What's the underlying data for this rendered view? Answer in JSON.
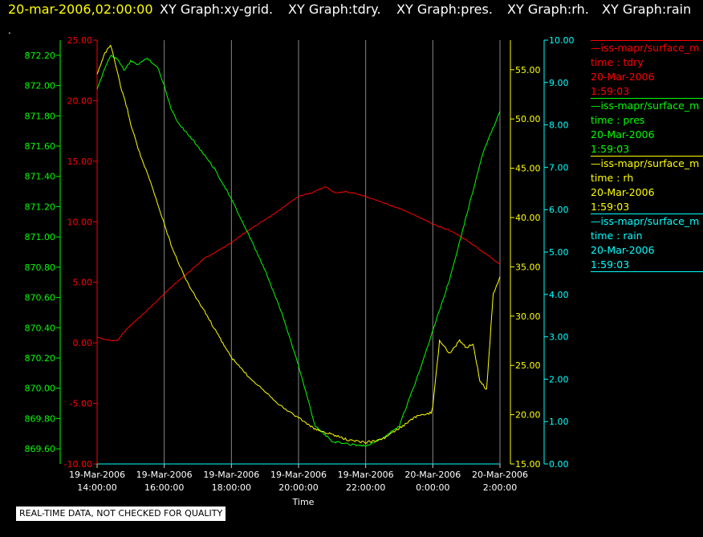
{
  "header": {
    "timestamp": "20-mar-2006,02:00:00",
    "graphs": [
      "XY Graph:xy-grid.",
      "XY Graph:tdry.",
      "XY Graph:pres.",
      "XY Graph:rh.",
      "XY Graph:rain"
    ],
    "dot": ".",
    "timestamp_color": "#ffff00",
    "graph_color": "#ffffff"
  },
  "legend": [
    {
      "source": "—iss-mapr/surface_m",
      "field": "time : tdry",
      "date": "20-Mar-2006",
      "time": "1:59:03",
      "color": "#ff0000"
    },
    {
      "source": "—iss-mapr/surface_m",
      "field": "time : pres",
      "date": "20-Mar-2006",
      "time": "1:59:03",
      "color": "#00ff00"
    },
    {
      "source": "—iss-mapr/surface_m",
      "field": "time : rh",
      "date": "20-Mar-2006",
      "time": "1:59:03",
      "color": "#ffff00"
    },
    {
      "source": "—iss-mapr/surface_m",
      "field": "time : rain",
      "date": "20-Mar-2006",
      "time": "1:59:03",
      "color": "#00ffff"
    }
  ],
  "footer_note": "REAL-TIME DATA, NOT CHECKED FOR QUALITY",
  "chart_data": {
    "type": "line",
    "xlabel": "Time",
    "xlim": [
      14,
      26
    ],
    "x_ticks": [
      {
        "x": 14,
        "date": "19-Mar-2006",
        "time": "14:00:00"
      },
      {
        "x": 16,
        "date": "19-Mar-2006",
        "time": "16:00:00"
      },
      {
        "x": 18,
        "date": "19-Mar-2006",
        "time": "18:00:00"
      },
      {
        "x": 20,
        "date": "19-Mar-2006",
        "time": "20:00:00"
      },
      {
        "x": 22,
        "date": "19-Mar-2006",
        "time": "22:00:00"
      },
      {
        "x": 24,
        "date": "20-Mar-2006",
        "time": "0:00:00"
      },
      {
        "x": 26,
        "date": "20-Mar-2006",
        "time": "2:00:00"
      }
    ],
    "grid": "vertical",
    "axes": {
      "pres": {
        "side": "left",
        "color": "#00ff00",
        "ylim": [
          869.5,
          872.3
        ],
        "ticks": [
          "869.60",
          "869.80",
          "870.00",
          "870.20",
          "870.40",
          "870.60",
          "870.80",
          "871.00",
          "871.20",
          "871.40",
          "871.60",
          "871.80",
          "872.00",
          "872.20"
        ]
      },
      "tdry": {
        "side": "left",
        "color": "#ff0000",
        "ylim": [
          -10,
          25
        ],
        "ticks": [
          "-10.00",
          "-5.00",
          "0.00",
          "5.00",
          "10.00",
          "15.00",
          "20.00",
          "25.00"
        ]
      },
      "rh": {
        "side": "right",
        "color": "#ffff00",
        "ylim": [
          15,
          58
        ],
        "ticks": [
          "15.00",
          "20.00",
          "25.00",
          "30.00",
          "35.00",
          "40.00",
          "45.00",
          "50.00",
          "55.00"
        ]
      },
      "rain": {
        "side": "right",
        "color": "#00ffff",
        "ylim": [
          0,
          10
        ],
        "ticks": [
          "0.00",
          "1.00",
          "2.00",
          "3.00",
          "4.00",
          "5.00",
          "6.00",
          "7.00",
          "8.00",
          "9.00",
          "10.00"
        ]
      }
    },
    "series": [
      {
        "name": "tdry",
        "axis": "tdry",
        "color": "#ff0000",
        "x": [
          14.0,
          14.2,
          14.4,
          14.6,
          14.9,
          15.3,
          15.8,
          16.2,
          16.5,
          16.8,
          17.2,
          17.6,
          18.0,
          18.4,
          18.8,
          19.2,
          19.6,
          20.0,
          20.4,
          20.8,
          21.1,
          21.4,
          21.7,
          22.0,
          22.5,
          23.0,
          23.5,
          24.0,
          24.5,
          25.0,
          25.5,
          26.0
        ],
        "y": [
          0.5,
          0.3,
          0.2,
          0.2,
          1.2,
          2.2,
          3.5,
          4.6,
          5.3,
          6.0,
          7.0,
          7.6,
          8.3,
          9.1,
          9.8,
          10.5,
          11.3,
          12.1,
          12.4,
          12.9,
          12.4,
          12.5,
          12.3,
          12.1,
          11.6,
          11.1,
          10.5,
          9.8,
          9.3,
          8.5,
          7.5,
          6.5
        ]
      },
      {
        "name": "pres",
        "axis": "pres",
        "color": "#00ff00",
        "x": [
          14.0,
          14.2,
          14.4,
          14.6,
          14.8,
          15.0,
          15.2,
          15.5,
          15.8,
          16.0,
          16.2,
          16.4,
          16.7,
          17.0,
          17.5,
          18.0,
          18.5,
          19.0,
          19.5,
          20.0,
          20.5,
          21.0,
          21.5,
          22.0,
          22.5,
          23.0,
          23.5,
          24.0,
          24.5,
          25.0,
          25.5,
          26.0
        ],
        "y": [
          871.97,
          872.1,
          872.2,
          872.18,
          872.1,
          872.16,
          872.14,
          872.18,
          872.12,
          872.0,
          871.85,
          871.76,
          871.68,
          871.6,
          871.45,
          871.25,
          871.02,
          870.78,
          870.5,
          870.15,
          869.75,
          869.65,
          869.63,
          869.62,
          869.67,
          869.75,
          870.05,
          870.38,
          870.72,
          871.14,
          871.56,
          871.83
        ]
      },
      {
        "name": "rh",
        "axis": "rh",
        "color": "#ffff00",
        "x": [
          14.0,
          14.2,
          14.4,
          14.5,
          14.7,
          14.9,
          15.0,
          15.3,
          15.6,
          15.9,
          16.2,
          16.5,
          16.8,
          17.2,
          17.6,
          18.0,
          18.5,
          19.0,
          19.5,
          20.0,
          20.5,
          21.0,
          21.5,
          22.0,
          22.5,
          23.0,
          23.5,
          23.95,
          24.0,
          24.2,
          24.5,
          24.8,
          25.0,
          25.2,
          25.4,
          25.6,
          25.8,
          26.0
        ],
        "y": [
          54.5,
          56.5,
          57.5,
          56.2,
          53.3,
          51.0,
          49.5,
          46.2,
          43.5,
          40.4,
          37.3,
          34.8,
          32.7,
          30.5,
          28.1,
          25.8,
          23.9,
          22.4,
          20.8,
          19.7,
          18.5,
          18.0,
          17.4,
          17.2,
          17.5,
          18.6,
          19.8,
          20.2,
          20.8,
          27.5,
          26.2,
          27.5,
          26.8,
          27.2,
          23.5,
          22.5,
          32.2,
          34.0
        ]
      },
      {
        "name": "rain",
        "axis": "rain",
        "color": "#00ffff",
        "x": [
          14.0,
          26.0
        ],
        "y": [
          0.0,
          0.0
        ]
      }
    ]
  }
}
